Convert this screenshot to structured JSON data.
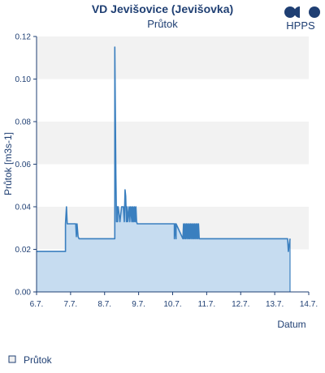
{
  "header": {
    "logo_text": "HPPS"
  },
  "colors": {
    "line": "#3a7fbf",
    "area": "#c6dcf0",
    "band": "#f2f2f2",
    "text": "#1f3f73",
    "axis": "#1f3f73"
  },
  "chart_data": {
    "type": "area",
    "title": "VD Jevišovice (Jevišovka)",
    "subtitle": "Průtok",
    "xlabel": "Datum",
    "ylabel": "Průtok [m3s-1]",
    "x_ticks": [
      "6.7.",
      "7.7.",
      "8.7.",
      "9.7.",
      "10.7.",
      "11.7.",
      "12.7.",
      "13.7.",
      "14.7."
    ],
    "xlim": [
      0,
      8
    ],
    "ylim": [
      0,
      0.12
    ],
    "y_ticks": [
      "0.00",
      "0.02",
      "0.04",
      "0.06",
      "0.08",
      "0.10",
      "0.12"
    ],
    "y_tick_values": [
      0,
      0.02,
      0.04,
      0.06,
      0.08,
      0.1,
      0.12
    ],
    "legend": {
      "position": "bottom-left",
      "entries": [
        "Průtok"
      ]
    },
    "grid": "alternating horizontal bands",
    "series": [
      {
        "name": "Průtok",
        "x": [
          0,
          0.85,
          0.85,
          0.88,
          0.9,
          0.9,
          1.15,
          1.17,
          1.19,
          1.22,
          1.25,
          1.25,
          2.3,
          2.3,
          2.33,
          2.35,
          2.37,
          2.38,
          2.38,
          2.4,
          2.45,
          2.5,
          2.55,
          2.58,
          2.6,
          2.62,
          2.64,
          2.66,
          2.68,
          2.72,
          2.74,
          2.76,
          2.8,
          2.8,
          2.82,
          2.84,
          2.86,
          2.88,
          2.9,
          2.92,
          2.94,
          2.96,
          2.98,
          3.0,
          3.05,
          3.1,
          3.13,
          3.16,
          3.2,
          3.5,
          3.7,
          3.8,
          3.82,
          3.84,
          3.9,
          3.92,
          3.94,
          4.0,
          4.05,
          4.05,
          4.08,
          4.1,
          4.1,
          4.3,
          4.32,
          4.34,
          4.36,
          4.38,
          4.4,
          4.42,
          4.44,
          4.46,
          4.48,
          4.5,
          4.52,
          4.54,
          4.56,
          4.58,
          4.6,
          4.62,
          4.64,
          4.66,
          4.68,
          4.7,
          4.72,
          4.74,
          4.76,
          4.78,
          4.8,
          5.0,
          6.0,
          7.0,
          7.35,
          7.36,
          7.38,
          7.4,
          7.45,
          7.45
        ],
        "values": [
          0.019,
          0.019,
          0.032,
          0.04,
          0.032,
          0.032,
          0.032,
          0.026,
          0.032,
          0.026,
          0.025,
          0.025,
          0.025,
          0.115,
          0.055,
          0.033,
          0.04,
          0.033,
          0.04,
          0.04,
          0.033,
          0.04,
          0.04,
          0.033,
          0.048,
          0.045,
          0.033,
          0.04,
          0.033,
          0.04,
          0.033,
          0.04,
          0.033,
          0.04,
          0.033,
          0.04,
          0.033,
          0.04,
          0.033,
          0.04,
          0.033,
          0.032,
          0.032,
          0.032,
          0.032,
          0.032,
          0.032,
          0.032,
          0.032,
          0.032,
          0.032,
          0.032,
          0.032,
          0.032,
          0.032,
          0.032,
          0.032,
          0.032,
          0.032,
          0.025,
          0.032,
          0.025,
          0.032,
          0.025,
          0.032,
          0.025,
          0.032,
          0.025,
          0.032,
          0.025,
          0.032,
          0.025,
          0.032,
          0.025,
          0.032,
          0.025,
          0.032,
          0.025,
          0.032,
          0.025,
          0.032,
          0.025,
          0.032,
          0.025,
          0.032,
          0.025,
          0.032,
          0.025,
          0.025,
          0.025,
          0.025,
          0.025,
          0.025,
          0.025,
          0.025,
          0.019,
          0.025,
          0.025
        ]
      }
    ]
  }
}
